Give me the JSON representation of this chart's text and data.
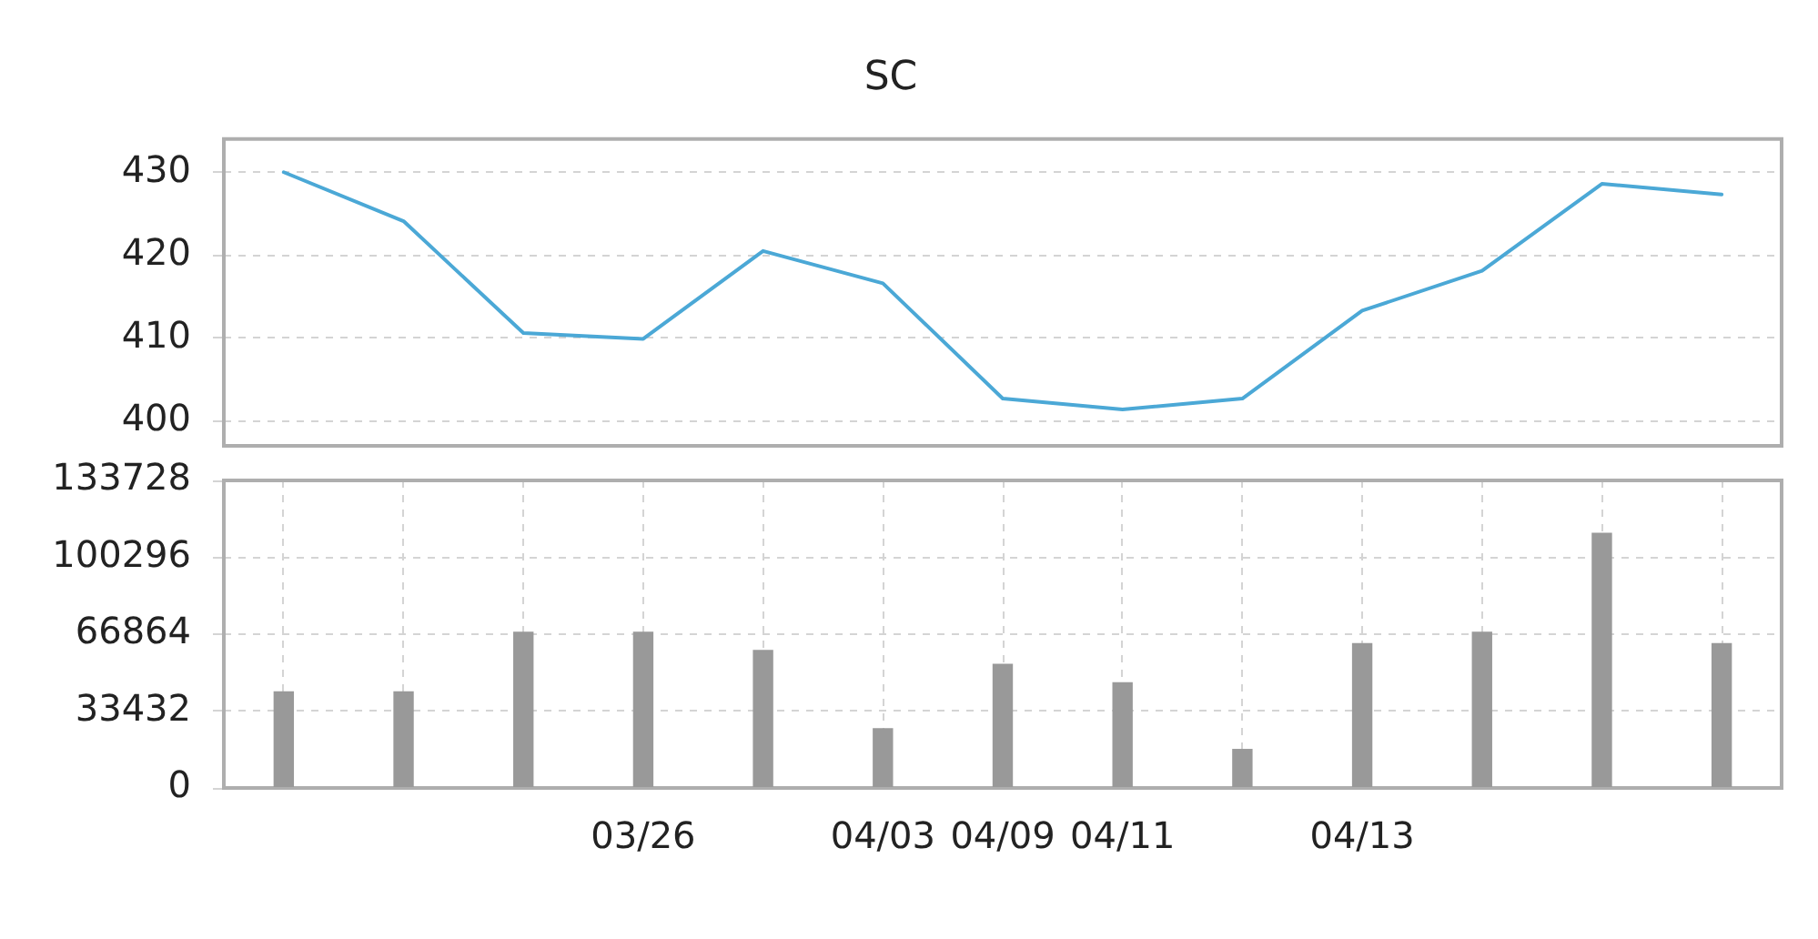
{
  "chart_data": [
    {
      "type": "line",
      "title": "SC",
      "categories": [
        null,
        null,
        null,
        null,
        null,
        null,
        null,
        null,
        null,
        null,
        null,
        null,
        null
      ],
      "values": [
        430,
        424.1,
        410.6,
        409.9,
        420.5,
        416.6,
        402.7,
        401.4,
        402.7,
        413.3,
        418.1,
        428.6,
        427.3
      ],
      "color": "#4ba8d6",
      "ylim": [
        397,
        434
      ],
      "yticks": [
        400,
        410,
        420,
        430
      ],
      "grid": "y",
      "tick_labels": "y"
    },
    {
      "type": "bar",
      "categories": [
        null,
        null,
        null,
        "03/26",
        null,
        "04/03",
        "04/09",
        "04/11",
        null,
        "04/13",
        null,
        null,
        null
      ],
      "values": [
        42000,
        42000,
        68000,
        68000,
        60000,
        26000,
        54000,
        46000,
        17000,
        63000,
        68000,
        111000,
        63000
      ],
      "color": "#999999",
      "ylim": [
        0,
        133728
      ],
      "yticks": [
        0,
        33432,
        66864,
        100296,
        133728
      ],
      "grid": true
    }
  ]
}
